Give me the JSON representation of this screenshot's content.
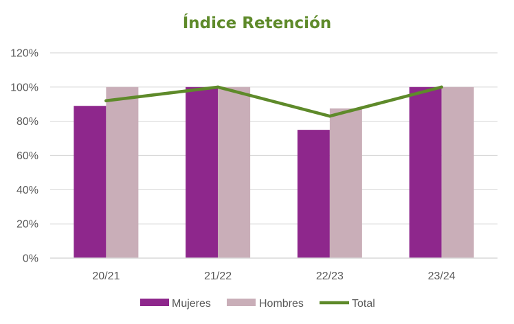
{
  "chart_data": {
    "type": "bar",
    "title": "Índice Retención",
    "categories": [
      "20/21",
      "21/22",
      "22/23",
      "23/24"
    ],
    "series": [
      {
        "name": "Mujeres",
        "type": "bar",
        "color": "#8E278C",
        "values": [
          0.89,
          1.0,
          0.75,
          1.0
        ]
      },
      {
        "name": "Hombres",
        "type": "bar",
        "color": "#C9AEB8",
        "values": [
          1.0,
          1.0,
          0.875,
          1.0
        ]
      },
      {
        "name": "Total",
        "type": "line",
        "color": "#5E8A2A",
        "values": [
          0.92,
          1.0,
          0.83,
          1.0
        ]
      }
    ],
    "ylim": [
      0,
      1.2
    ],
    "yticks": [
      0,
      0.2,
      0.4,
      0.6,
      0.8,
      1.0,
      1.2
    ],
    "ytick_labels": [
      "0%",
      "20%",
      "40%",
      "60%",
      "80%",
      "100%",
      "120%"
    ],
    "grid": true,
    "legend": "bottom",
    "title_color": "#5E8A2A",
    "grid_color": "#D9D9D9"
  }
}
